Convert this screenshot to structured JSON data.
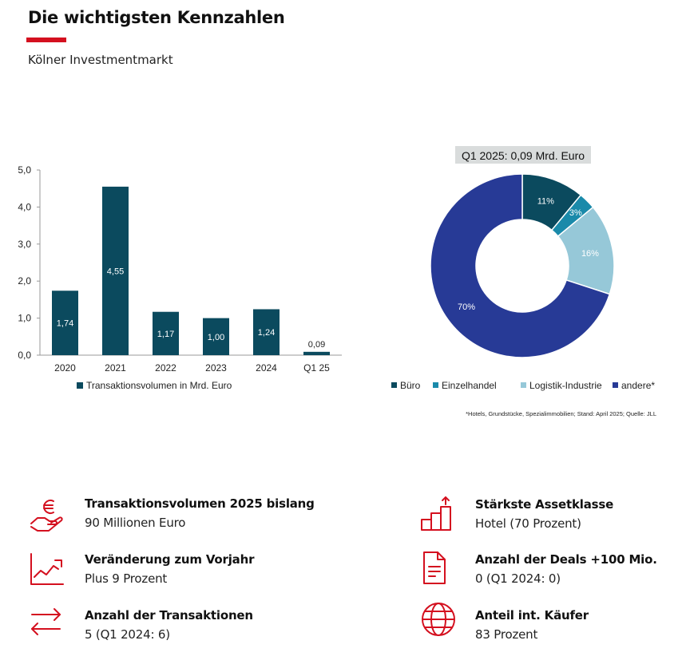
{
  "header": {
    "title": "Die wichtigsten Kennzahlen",
    "subtitle": "Kölner Investmentmarkt",
    "accent_color": "#d4101f"
  },
  "chart_data": [
    {
      "type": "bar",
      "categories": [
        "2020",
        "2021",
        "2022",
        "2023",
        "2024",
        "Q1 25"
      ],
      "series": [
        {
          "name": "Transaktionsvolumen in Mrd. Euro",
          "values": [
            1.74,
            4.55,
            1.17,
            1.0,
            1.24,
            0.09
          ],
          "color": "#0b4a5e"
        }
      ],
      "data_labels": [
        "1,74",
        "4,55",
        "1,17",
        "1,00",
        "1,24",
        "0,09"
      ],
      "y_ticks": [
        "0,0",
        "1,0",
        "2,0",
        "3,0",
        "4,0",
        "5,0"
      ],
      "ylim": [
        0,
        5
      ],
      "title": "",
      "xlabel": "",
      "ylabel": "",
      "legend": "bottom",
      "grid": false
    },
    {
      "type": "pie",
      "donut": true,
      "title": "Q1 2025: 0,09 Mrd. Euro",
      "slices": [
        {
          "name": "Büro",
          "value": 11,
          "label": "11%",
          "color": "#0b4a5e"
        },
        {
          "name": "Einzelhandel",
          "value": 3,
          "label": "3%",
          "color": "#1a8aaa"
        },
        {
          "name": "Logistik-Industrie",
          "value": 16,
          "label": "16%",
          "color": "#96c8d8"
        },
        {
          "name": "andere*",
          "value": 70,
          "label": "70%",
          "color": "#273a96"
        }
      ],
      "legend": "bottom",
      "footnote": "*Hotels, Grundstücke, Spezialimmobilien; Stand: April 2025; Quelle: JLL"
    }
  ],
  "kpis": [
    {
      "icon": "euro-hand-icon",
      "label": "Transaktionsvolumen 2025 bislang",
      "value": "90 Millionen Euro"
    },
    {
      "icon": "trend-line-icon",
      "label": "Veränderung zum Vorjahr",
      "value": "Plus 9 Prozent"
    },
    {
      "icon": "exchange-arrows-icon",
      "label": "Anzahl der Transaktionen",
      "value": "5 (Q1 2024: 6)"
    },
    {
      "icon": "rising-steps-icon",
      "label": "Stärkste Assetklasse",
      "value": "Hotel (70 Prozent)"
    },
    {
      "icon": "document-icon",
      "label": "Anzahl der Deals +100 Mio.",
      "value": "0 (Q1 2024: 0)"
    },
    {
      "icon": "globe-icon",
      "label": "Anteil int. Käufer",
      "value": "83 Prozent"
    }
  ]
}
